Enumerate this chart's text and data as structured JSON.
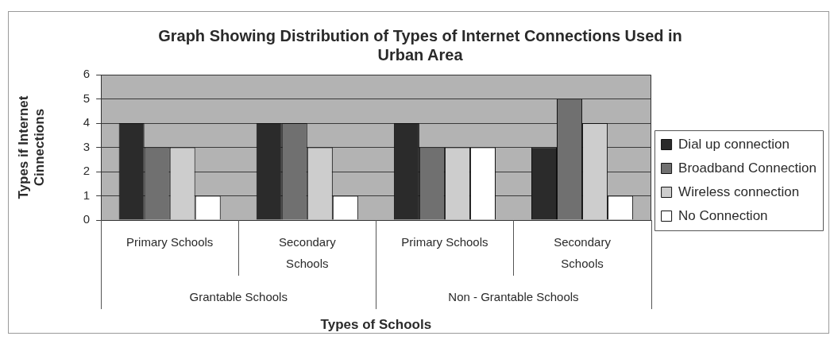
{
  "chart_data": {
    "type": "bar",
    "title": "Graph Showing Distribution of Types of Internet Connections Used in Urban Area",
    "xlabel": "Types of Schools",
    "ylabel": "Types if Internet Cinnections",
    "categories": [
      "Primary Schools",
      "Secondary Schools",
      "Primary Schools",
      "Secondary Schools"
    ],
    "series": [
      {
        "name": "Dial up connection",
        "color": "#2b2b2b",
        "values": [
          4,
          4,
          4,
          3
        ]
      },
      {
        "name": "Broadband Connection",
        "color": "#707070",
        "values": [
          3,
          4,
          3,
          5
        ]
      },
      {
        "name": "Wireless connection",
        "color": "#cdcdcd",
        "values": [
          3,
          3,
          3,
          4
        ]
      },
      {
        "name": "No Connection",
        "color": "#ffffff",
        "values": [
          1,
          1,
          3,
          1
        ]
      }
    ],
    "ylim": [
      0,
      6
    ],
    "yticks": [
      0,
      1,
      2,
      3,
      4,
      5,
      6
    ],
    "grid": "y",
    "legend": "right",
    "annotations": [
      "Grantable Schools",
      "Non - Grantable Schools"
    ]
  }
}
